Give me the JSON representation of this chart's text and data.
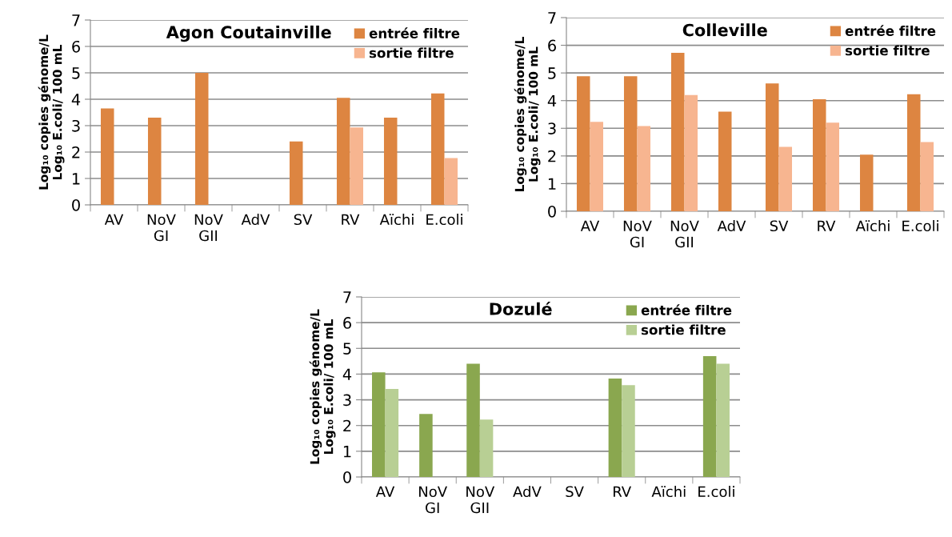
{
  "chart_data": [
    {
      "type": "bar",
      "title": "Agon Coutainville",
      "ylabel": "Log₁₀ copies génome/L\nLog₁₀ E.coli/ 100 mL",
      "categories": [
        "AV",
        "NoV\nGI",
        "NoV\nGII",
        "AdV",
        "SV",
        "RV",
        "Aïchi",
        "E.coli"
      ],
      "series": [
        {
          "name": "entrée filtre",
          "color": "#dd8541",
          "values": [
            3.65,
            3.3,
            5.0,
            null,
            2.4,
            4.05,
            3.3,
            4.22
          ]
        },
        {
          "name": "sortie filtre",
          "color": "#f7b590",
          "values": [
            null,
            null,
            null,
            null,
            null,
            2.93,
            null,
            1.77
          ]
        }
      ],
      "ylim": [
        0,
        7
      ],
      "yticks": [
        0,
        1,
        2,
        3,
        4,
        5,
        6,
        7
      ],
      "grid": "y",
      "legend": "top right"
    },
    {
      "type": "bar",
      "title": "Colleville",
      "ylabel": "Log₁₀ copies génome/L\nLog₁₀ E.coli/ 100 mL",
      "categories": [
        "AV",
        "NoV\nGI",
        "NoV\nGII",
        "AdV",
        "SV",
        "RV",
        "Aïchi",
        "E.coli"
      ],
      "series": [
        {
          "name": "entrée filtre",
          "color": "#dd8541",
          "values": [
            4.88,
            4.88,
            5.73,
            3.6,
            4.62,
            4.05,
            2.05,
            4.23
          ]
        },
        {
          "name": "sortie filtre",
          "color": "#f7b590",
          "values": [
            3.23,
            3.08,
            4.2,
            null,
            2.33,
            3.2,
            null,
            2.5
          ]
        }
      ],
      "ylim": [
        0,
        7
      ],
      "yticks": [
        0,
        1,
        2,
        3,
        4,
        5,
        6,
        7
      ],
      "grid": "y",
      "legend": "top right"
    },
    {
      "type": "bar",
      "title": "Dozulé",
      "ylabel": "Log₁₀ copies génome/L\nLog₁₀ E.coli/ 100 mL",
      "categories": [
        "AV",
        "NoV\nGI",
        "NoV\nGII",
        "AdV",
        "SV",
        "RV",
        "Aïchi",
        "E.coli"
      ],
      "series": [
        {
          "name": "entrée filtre",
          "color": "#8aa74f",
          "values": [
            4.07,
            2.45,
            4.4,
            null,
            null,
            3.83,
            null,
            4.7
          ]
        },
        {
          "name": "sortie filtre",
          "color": "#b8cf94",
          "values": [
            3.42,
            null,
            2.23,
            null,
            null,
            3.57,
            null,
            4.4
          ]
        }
      ],
      "ylim": [
        0,
        7
      ],
      "yticks": [
        0,
        1,
        2,
        3,
        4,
        5,
        6,
        7
      ],
      "grid": "y",
      "legend": "top right"
    }
  ]
}
